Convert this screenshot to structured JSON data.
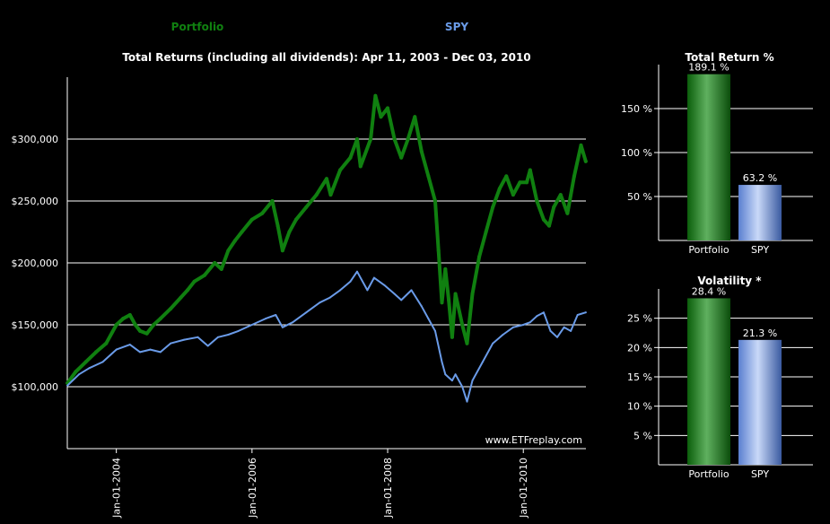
{
  "colors": {
    "background": "#000000",
    "portfolio": "#108010",
    "spy": "#6a9be8",
    "text": "#ffffff",
    "grid": "#ffffff"
  },
  "legend": {
    "portfolio": "Portfolio",
    "spy": "SPY"
  },
  "watermark": "www.ETFreplay.com",
  "chart_data": [
    {
      "type": "line",
      "title": "Total Returns (including all dividends): Apr 11, 2003 - Dec 03, 2010",
      "xlabel": "",
      "ylabel": "",
      "xlim": [
        2003.277,
        2010.923
      ],
      "ylim": [
        50000,
        350000
      ],
      "y_ticks": [
        100000,
        150000,
        200000,
        250000,
        300000
      ],
      "y_tick_labels": [
        "$100,000",
        "$150,000",
        "$200,000",
        "$250,000",
        "$300,000"
      ],
      "x_ticks": [
        2004.0,
        2006.0,
        2008.0,
        2010.0
      ],
      "x_tick_labels": [
        "Jan-01-2004",
        "Jan-01-2006",
        "Jan-01-2008",
        "Jan-01-2010"
      ],
      "grid": true,
      "series": [
        {
          "name": "Portfolio",
          "x": [
            2003.28,
            2003.4,
            2003.55,
            2003.7,
            2003.85,
            2004.0,
            2004.1,
            2004.2,
            2004.28,
            2004.35,
            2004.45,
            2004.55,
            2004.65,
            2004.8,
            2004.95,
            2005.05,
            2005.15,
            2005.3,
            2005.45,
            2005.55,
            2005.65,
            2005.75,
            2005.85,
            2006.0,
            2006.15,
            2006.3,
            2006.38,
            2006.45,
            2006.55,
            2006.65,
            2006.8,
            2006.95,
            2007.1,
            2007.16,
            2007.3,
            2007.45,
            2007.55,
            2007.6,
            2007.75,
            2007.82,
            2007.9,
            2008.0,
            2008.1,
            2008.2,
            2008.3,
            2008.4,
            2008.5,
            2008.6,
            2008.7,
            2008.75,
            2008.8,
            2008.85,
            2008.9,
            2008.95,
            2009.0,
            2009.1,
            2009.17,
            2009.25,
            2009.35,
            2009.45,
            2009.55,
            2009.65,
            2009.75,
            2009.85,
            2009.95,
            2010.05,
            2010.1,
            2010.2,
            2010.3,
            2010.38,
            2010.45,
            2010.55,
            2010.65,
            2010.75,
            2010.85,
            2010.92
          ],
          "values": [
            103000,
            112000,
            120000,
            128000,
            135000,
            150000,
            155000,
            158000,
            150000,
            145000,
            143000,
            150000,
            155000,
            163000,
            172000,
            178000,
            185000,
            190000,
            200000,
            195000,
            210000,
            218000,
            225000,
            235000,
            240000,
            250000,
            230000,
            210000,
            225000,
            235000,
            245000,
            255000,
            268000,
            255000,
            275000,
            285000,
            300000,
            278000,
            300000,
            335000,
            318000,
            325000,
            300000,
            285000,
            300000,
            318000,
            290000,
            270000,
            250000,
            210000,
            168000,
            195000,
            170000,
            140000,
            175000,
            150000,
            135000,
            175000,
            205000,
            225000,
            245000,
            260000,
            270000,
            255000,
            265000,
            265000,
            275000,
            250000,
            235000,
            230000,
            245000,
            255000,
            240000,
            270000,
            295000,
            282000
          ]
        },
        {
          "name": "SPY",
          "x": [
            2003.28,
            2003.45,
            2003.6,
            2003.8,
            2004.0,
            2004.2,
            2004.35,
            2004.5,
            2004.65,
            2004.8,
            2005.0,
            2005.2,
            2005.35,
            2005.5,
            2005.65,
            2005.8,
            2006.0,
            2006.2,
            2006.35,
            2006.45,
            2006.6,
            2006.8,
            2007.0,
            2007.15,
            2007.3,
            2007.45,
            2007.55,
            2007.7,
            2007.8,
            2007.95,
            2008.1,
            2008.2,
            2008.35,
            2008.5,
            2008.6,
            2008.7,
            2008.8,
            2008.85,
            2008.95,
            2009.0,
            2009.1,
            2009.17,
            2009.25,
            2009.4,
            2009.55,
            2009.7,
            2009.85,
            2010.0,
            2010.1,
            2010.2,
            2010.3,
            2010.4,
            2010.5,
            2010.6,
            2010.7,
            2010.8,
            2010.92
          ],
          "values": [
            101000,
            110000,
            115000,
            120000,
            130000,
            134000,
            128000,
            130000,
            128000,
            135000,
            138000,
            140000,
            133000,
            140000,
            142000,
            145000,
            150000,
            155000,
            158000,
            148000,
            152000,
            160000,
            168000,
            172000,
            178000,
            185000,
            193000,
            178000,
            188000,
            182000,
            175000,
            170000,
            178000,
            165000,
            155000,
            145000,
            120000,
            110000,
            105000,
            110000,
            100000,
            88000,
            105000,
            120000,
            135000,
            142000,
            148000,
            150000,
            152000,
            157000,
            160000,
            145000,
            140000,
            148000,
            145000,
            158000,
            160000
          ]
        }
      ]
    },
    {
      "type": "bar",
      "title": "Total Return %",
      "categories": [
        "Portfolio",
        "SPY"
      ],
      "values": [
        189.1,
        63.2
      ],
      "data_labels": [
        "189.1 %",
        "63.2 %"
      ],
      "ylim": [
        0,
        200
      ],
      "y_ticks": [
        50,
        100,
        150
      ],
      "y_tick_labels": [
        "50 %",
        "100 %",
        "150 %"
      ],
      "xlabel": "",
      "ylabel": "",
      "grid": true
    },
    {
      "type": "bar",
      "title": "Volatility *",
      "categories": [
        "Portfolio",
        "SPY"
      ],
      "values": [
        28.4,
        21.3
      ],
      "data_labels": [
        "28.4 %",
        "21.3 %"
      ],
      "ylim": [
        0,
        30
      ],
      "y_ticks": [
        5,
        10,
        15,
        20,
        25
      ],
      "y_tick_labels": [
        "5 %",
        "10 %",
        "15 %",
        "20 %",
        "25 %"
      ],
      "xlabel": "",
      "ylabel": "",
      "grid": true
    }
  ]
}
